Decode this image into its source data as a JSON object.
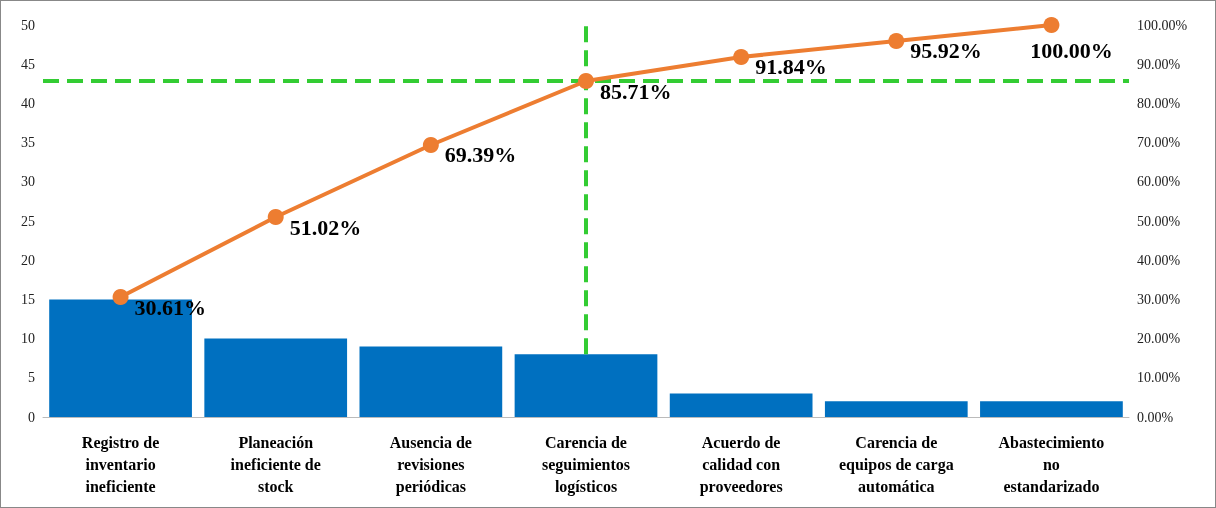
{
  "chart_data": {
    "type": "bar",
    "categories": [
      "Registro de\ninventario\nineficiente",
      "Planeación\nineficiente de\nstock",
      "Ausencia de\nrevisiones\nperiódicas",
      "Carencia de\nseguimientos\nlogísticos",
      "Acuerdo de\ncalidad con\nproveedores",
      "Carencia de\nequipos de carga\nautomática",
      "Abastecimiento\nno\nestandarizado"
    ],
    "series": [
      {
        "color": "#0070c0",
        "values": [
          15,
          10,
          9,
          8,
          3,
          2,
          2
        ]
      },
      {
        "type": "line",
        "axis": "y2",
        "color": "#ed7d31",
        "marker": "circle",
        "values": [
          30.61,
          51.02,
          69.39,
          85.71,
          91.84,
          95.92,
          100
        ],
        "value_labels": [
          "30.61%",
          "51.02%",
          "69.39%",
          "85.71%",
          "91.84%",
          "95.92%",
          "100.00%"
        ]
      }
    ],
    "ylim": [
      0,
      50
    ],
    "yticks": [
      0,
      5,
      10,
      15,
      20,
      25,
      30,
      35,
      40,
      45,
      50
    ],
    "y2lim": [
      0,
      100
    ],
    "y2ticks": [
      {
        "value": 0,
        "label": "0.00%"
      },
      {
        "value": 10,
        "label": "10.00%"
      },
      {
        "value": 20,
        "label": "20.00%"
      },
      {
        "value": 30,
        "label": "30.00%"
      },
      {
        "value": 40,
        "label": "40.00%"
      },
      {
        "value": 50,
        "label": "50.00%"
      },
      {
        "value": 60,
        "label": "60.00%"
      },
      {
        "value": 70,
        "label": "70.00%"
      },
      {
        "value": 80,
        "label": "80.00%"
      },
      {
        "value": 90,
        "label": "90.00%"
      },
      {
        "value": 100,
        "label": "100.00%"
      }
    ],
    "ref_lines": [
      {
        "axis": "y2",
        "value": 85.71,
        "color": "#33cc33",
        "line_style": "dashed"
      },
      {
        "axis": "x",
        "value": "Carencia de\nseguimientos\nlogísticos",
        "color": "#33cc33",
        "line_style": "dashed"
      }
    ],
    "grid": false
  }
}
